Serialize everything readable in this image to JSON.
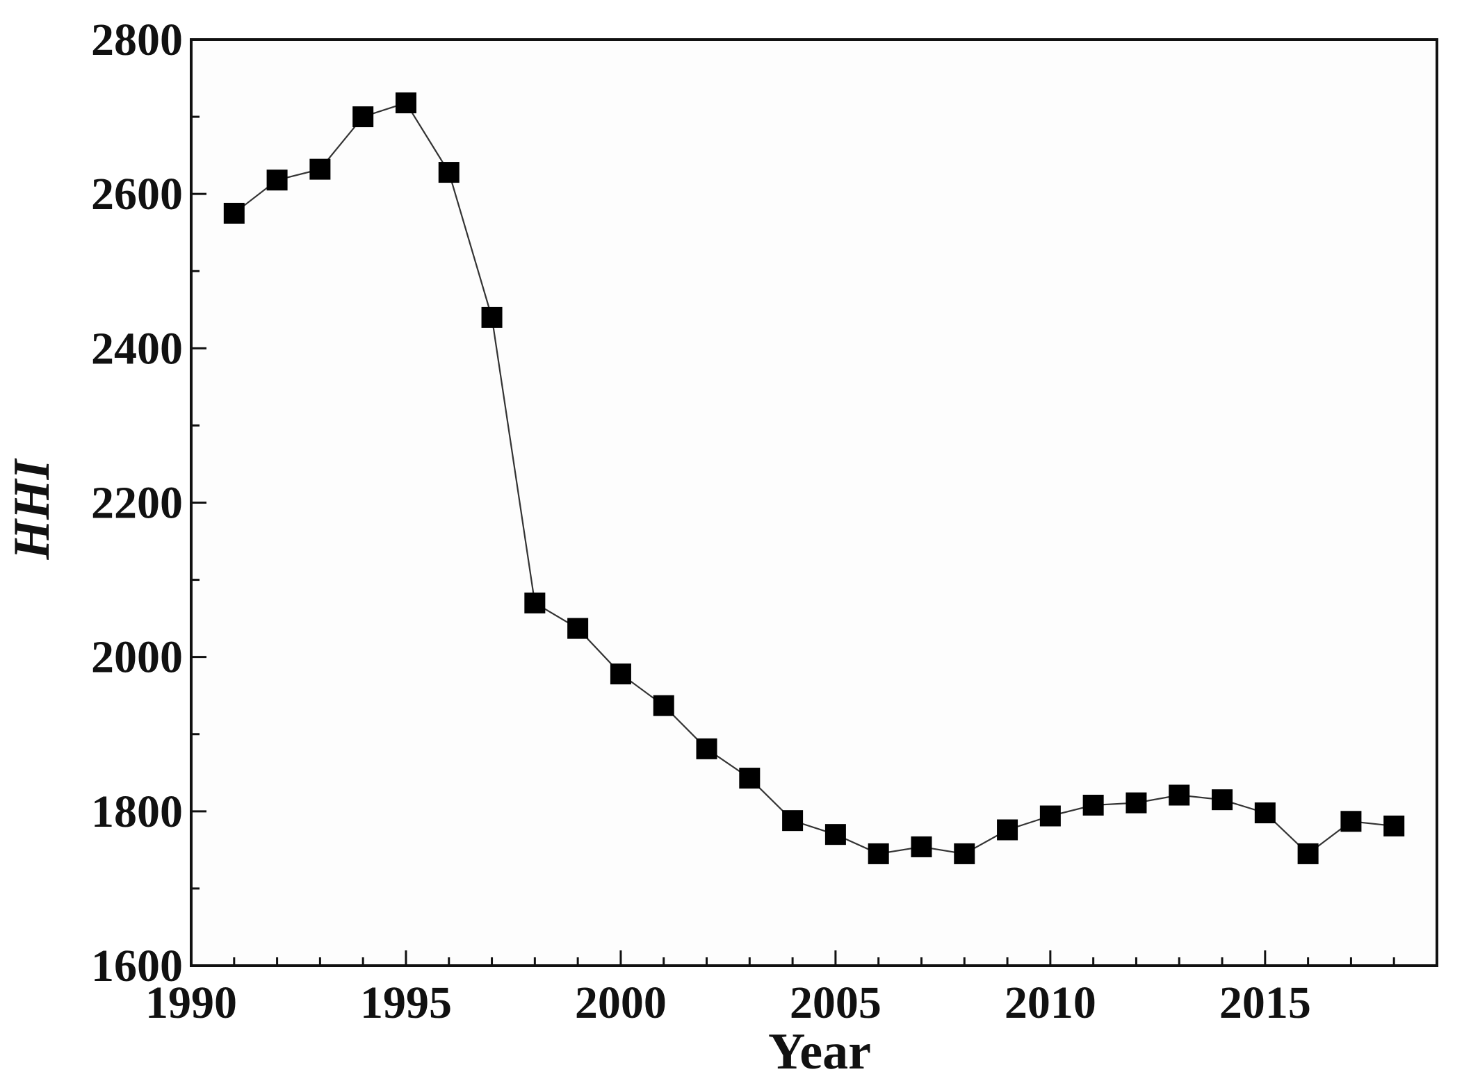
{
  "chart_data": {
    "type": "line",
    "title": "",
    "xlabel": "Year",
    "ylabel": "HHI",
    "xlim": [
      1990,
      2019
    ],
    "ylim": [
      1600,
      2800
    ],
    "x_ticks": [
      1990,
      1995,
      2000,
      2005,
      2010,
      2015
    ],
    "x_tick_labels": [
      "1990",
      "1995",
      "2000",
      "2005",
      "2010",
      "2015"
    ],
    "y_ticks": [
      1600,
      1800,
      2000,
      2200,
      2400,
      2600,
      2800
    ],
    "y_tick_labels": [
      "1600",
      "1800",
      "2000",
      "2200",
      "2400",
      "2600",
      "2800"
    ],
    "grid": false,
    "marker": "square",
    "series": [
      {
        "x": [
          1991,
          1992,
          1993,
          1994,
          1995,
          1996,
          1997,
          1998,
          1999,
          2000,
          2001,
          2002,
          2003,
          2004,
          2005,
          2006,
          2007,
          2008,
          2009,
          2010,
          2011,
          2012,
          2013,
          2014,
          2015,
          2016,
          2017,
          2018
        ],
        "y": [
          2575,
          2618,
          2632,
          2700,
          2718,
          2628,
          2440,
          2070,
          2037,
          1978,
          1937,
          1881,
          1843,
          1788,
          1770,
          1745,
          1754,
          1745,
          1776,
          1794,
          1808,
          1811,
          1821,
          1815,
          1798,
          1745,
          1787,
          1781
        ]
      }
    ],
    "colors": {
      "background": "#fdfdfd",
      "axis": "#111111",
      "line": "#333333",
      "marker": "#000000"
    }
  }
}
